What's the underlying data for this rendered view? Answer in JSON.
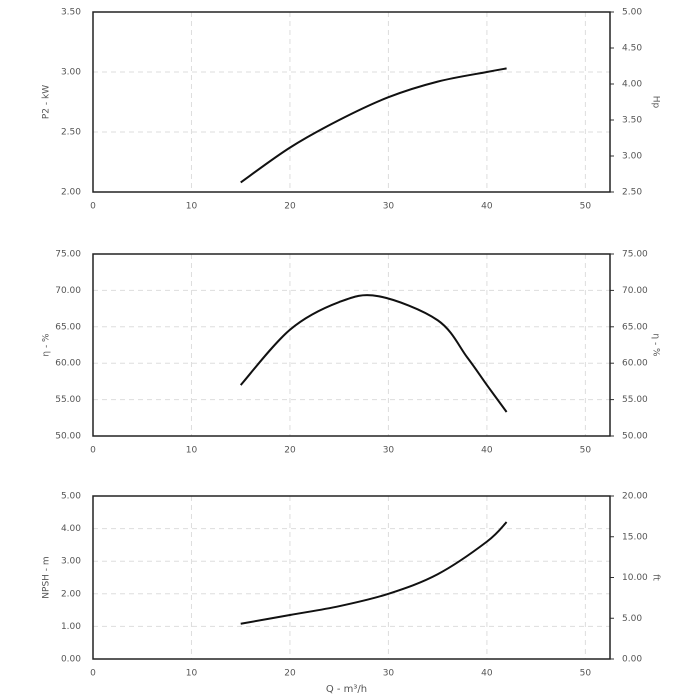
{
  "chart_data": [
    {
      "type": "line",
      "ylabel": "P2 - kW",
      "y2label": "Hp",
      "x": [
        15,
        20,
        25,
        30,
        35,
        40,
        42
      ],
      "values": [
        2.08,
        2.37,
        2.6,
        2.79,
        2.92,
        3.0,
        3.03
      ],
      "color": "#111111",
      "xlim": [
        0,
        52.5
      ],
      "xticks": [
        0,
        10,
        20,
        30,
        40,
        50
      ],
      "ylim": [
        2,
        3.5
      ],
      "yticks": [
        {
          "value": 2,
          "label": "2.00"
        },
        {
          "value": 2.5,
          "label": "2.50"
        },
        {
          "value": 3,
          "label": "3.00"
        },
        {
          "value": 3.5,
          "label": "3.50"
        }
      ],
      "y2lim": [
        2.5,
        5
      ],
      "y2ticks": [
        {
          "value": 2.5,
          "label": "2.50"
        },
        {
          "value": 3,
          "label": "3.00"
        },
        {
          "value": 3.5,
          "label": "3.50"
        },
        {
          "value": 4,
          "label": "4.00"
        },
        {
          "value": 4.5,
          "label": "4.50"
        },
        {
          "value": 5,
          "label": "5.00"
        }
      ],
      "grid": true
    },
    {
      "type": "line",
      "ylabel": "η - %",
      "y2label": "η - %",
      "x": [
        15,
        20,
        25,
        29,
        35,
        38,
        40,
        42
      ],
      "values": [
        57.0,
        64.6,
        68.4,
        69.2,
        65.9,
        60.8,
        57.0,
        53.3
      ],
      "color": "#111111",
      "xlim": [
        0,
        52.5
      ],
      "xticks": [
        0,
        10,
        20,
        30,
        40,
        50
      ],
      "ylim": [
        50,
        75
      ],
      "yticks": [
        {
          "value": 50,
          "label": "50.00"
        },
        {
          "value": 55,
          "label": "55.00"
        },
        {
          "value": 60,
          "label": "60.00"
        },
        {
          "value": 65,
          "label": "65.00"
        },
        {
          "value": 70,
          "label": "70.00"
        },
        {
          "value": 75,
          "label": "75.00"
        }
      ],
      "y2lim": [
        50,
        75
      ],
      "y2ticks": [
        {
          "value": 50,
          "label": "50.00"
        },
        {
          "value": 55,
          "label": "55.00"
        },
        {
          "value": 60,
          "label": "60.00"
        },
        {
          "value": 65,
          "label": "65.00"
        },
        {
          "value": 70,
          "label": "70.00"
        },
        {
          "value": 75,
          "label": "75.00"
        }
      ],
      "grid": true
    },
    {
      "type": "line",
      "ylabel": "NPSH - m",
      "y2label": "ft",
      "xlabel": "Q - m³/h",
      "x": [
        15,
        20,
        25,
        30,
        35,
        40,
        42
      ],
      "values": [
        1.08,
        1.35,
        1.62,
        2.0,
        2.6,
        3.6,
        4.2
      ],
      "color": "#111111",
      "xlim": [
        0,
        52.5
      ],
      "xticks": [
        0,
        10,
        20,
        30,
        40,
        50
      ],
      "ylim": [
        0,
        5
      ],
      "yticks": [
        {
          "value": 0,
          "label": "0.00"
        },
        {
          "value": 1,
          "label": "1.00"
        },
        {
          "value": 2,
          "label": "2.00"
        },
        {
          "value": 3,
          "label": "3.00"
        },
        {
          "value": 4,
          "label": "4.00"
        },
        {
          "value": 5,
          "label": "5.00"
        }
      ],
      "y2lim": [
        0,
        20
      ],
      "y2ticks": [
        {
          "value": 0,
          "label": "0.00"
        },
        {
          "value": 5,
          "label": "5.00"
        },
        {
          "value": 10,
          "label": "10.00"
        },
        {
          "value": 15,
          "label": "15.00"
        },
        {
          "value": 20,
          "label": "20.00"
        }
      ],
      "grid": true
    }
  ]
}
